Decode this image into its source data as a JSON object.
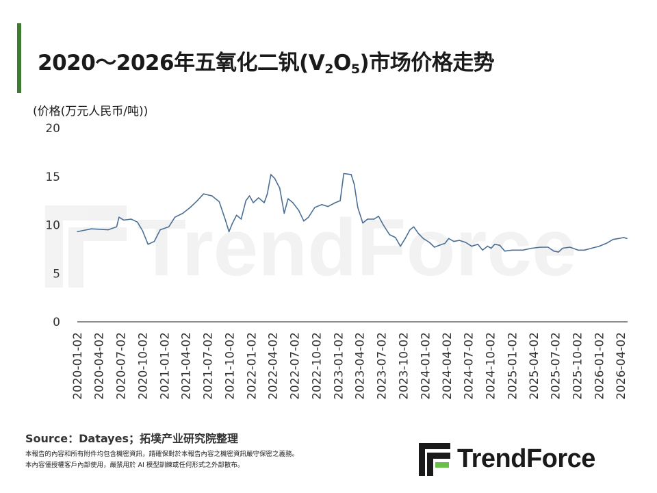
{
  "header": {
    "title_prefix": "2020～2026年五氧化二钒(V",
    "title_sub1": "2",
    "title_mid": "O",
    "title_sub2": "5",
    "title_suffix": ")市场价格走势"
  },
  "chart_data": {
    "type": "line",
    "ylabel": "(价格(万元人民币/吨))",
    "ylim": [
      0,
      20
    ],
    "y_ticks": [
      "0",
      "5",
      "10",
      "15",
      "20"
    ],
    "x_range": [
      "2020-01-02",
      "2026-05-01"
    ],
    "x_ticks": [
      "2020-01-02",
      "2020-04-02",
      "2020-07-02",
      "2020-10-02",
      "2021-01-02",
      "2021-04-02",
      "2021-07-02",
      "2021-10-02",
      "2022-01-02",
      "2022-04-02",
      "2022-07-02",
      "2022-10-02",
      "2023-01-02",
      "2023-04-02",
      "2023-07-02",
      "2023-10-02",
      "2024-01-02",
      "2024-04-02",
      "2024-07-02",
      "2024-10-02",
      "2025-01-02",
      "2025-04-02",
      "2025-07-02",
      "2025-10-02",
      "2026-01-02",
      "2026-04-02"
    ],
    "line_color": "#4a6f96",
    "grid": false,
    "series": [
      {
        "name": "",
        "points": [
          [
            "2020-01-02",
            9.3
          ],
          [
            "2020-03-01",
            9.6
          ],
          [
            "2020-05-10",
            9.5
          ],
          [
            "2020-06-15",
            9.8
          ],
          [
            "2020-06-25",
            10.8
          ],
          [
            "2020-07-15",
            10.5
          ],
          [
            "2020-08-15",
            10.6
          ],
          [
            "2020-09-10",
            10.3
          ],
          [
            "2020-10-02",
            9.4
          ],
          [
            "2020-10-25",
            8.0
          ],
          [
            "2020-11-20",
            8.3
          ],
          [
            "2020-12-15",
            9.5
          ],
          [
            "2021-01-20",
            9.8
          ],
          [
            "2021-02-15",
            10.8
          ],
          [
            "2021-03-20",
            11.2
          ],
          [
            "2021-04-20",
            11.8
          ],
          [
            "2021-05-20",
            12.5
          ],
          [
            "2021-06-15",
            13.2
          ],
          [
            "2021-07-20",
            13.0
          ],
          [
            "2021-08-20",
            12.4
          ],
          [
            "2021-09-15",
            10.5
          ],
          [
            "2021-09-30",
            9.3
          ],
          [
            "2021-10-15",
            10.2
          ],
          [
            "2021-11-01",
            11.0
          ],
          [
            "2021-11-20",
            10.6
          ],
          [
            "2021-12-10",
            12.5
          ],
          [
            "2021-12-25",
            13.0
          ],
          [
            "2022-01-10",
            12.3
          ],
          [
            "2022-02-01",
            12.8
          ],
          [
            "2022-02-25",
            12.3
          ],
          [
            "2022-03-10",
            13.2
          ],
          [
            "2022-03-25",
            15.2
          ],
          [
            "2022-04-10",
            14.8
          ],
          [
            "2022-05-01",
            13.8
          ],
          [
            "2022-05-20",
            11.2
          ],
          [
            "2022-06-05",
            12.7
          ],
          [
            "2022-06-25",
            12.3
          ],
          [
            "2022-07-20",
            11.5
          ],
          [
            "2022-08-10",
            10.4
          ],
          [
            "2022-08-30",
            10.8
          ],
          [
            "2022-09-25",
            11.8
          ],
          [
            "2022-10-25",
            12.1
          ],
          [
            "2022-11-20",
            11.9
          ],
          [
            "2022-12-20",
            12.3
          ],
          [
            "2023-01-10",
            12.5
          ],
          [
            "2023-01-25",
            15.3
          ],
          [
            "2023-02-25",
            15.2
          ],
          [
            "2023-03-10",
            14.2
          ],
          [
            "2023-03-25",
            11.8
          ],
          [
            "2023-04-15",
            10.2
          ],
          [
            "2023-05-05",
            10.6
          ],
          [
            "2023-06-01",
            10.6
          ],
          [
            "2023-06-20",
            10.9
          ],
          [
            "2023-07-10",
            10.0
          ],
          [
            "2023-08-05",
            9.0
          ],
          [
            "2023-08-30",
            8.7
          ],
          [
            "2023-09-20",
            7.8
          ],
          [
            "2023-10-10",
            8.6
          ],
          [
            "2023-10-30",
            9.5
          ],
          [
            "2023-11-15",
            9.8
          ],
          [
            "2023-12-05",
            9.1
          ],
          [
            "2023-12-25",
            8.6
          ],
          [
            "2024-01-20",
            8.2
          ],
          [
            "2024-02-10",
            7.7
          ],
          [
            "2024-03-01",
            7.9
          ],
          [
            "2024-03-25",
            8.1
          ],
          [
            "2024-04-10",
            8.6
          ],
          [
            "2024-05-01",
            8.3
          ],
          [
            "2024-05-25",
            8.4
          ],
          [
            "2024-06-20",
            8.2
          ],
          [
            "2024-07-15",
            7.8
          ],
          [
            "2024-08-10",
            8.0
          ],
          [
            "2024-08-30",
            7.4
          ],
          [
            "2024-09-20",
            7.8
          ],
          [
            "2024-10-05",
            7.6
          ],
          [
            "2024-10-20",
            8.0
          ],
          [
            "2024-11-10",
            7.9
          ],
          [
            "2024-12-01",
            7.3
          ],
          [
            "2025-01-02",
            7.4
          ],
          [
            "2025-02-15",
            7.4
          ],
          [
            "2025-03-25",
            7.6
          ],
          [
            "2025-05-01",
            7.7
          ],
          [
            "2025-06-01",
            7.7
          ],
          [
            "2025-06-25",
            7.3
          ],
          [
            "2025-07-15",
            7.2
          ],
          [
            "2025-08-01",
            7.6
          ],
          [
            "2025-09-01",
            7.7
          ],
          [
            "2025-10-05",
            7.4
          ],
          [
            "2025-11-01",
            7.4
          ],
          [
            "2025-12-01",
            7.6
          ],
          [
            "2026-01-02",
            7.8
          ],
          [
            "2026-02-01",
            8.1
          ],
          [
            "2026-03-01",
            8.5
          ],
          [
            "2026-03-25",
            8.6
          ],
          [
            "2026-04-15",
            8.7
          ],
          [
            "2026-04-28",
            8.6
          ]
        ]
      }
    ]
  },
  "footer": {
    "source": "Source：Datayes；拓墣产业研究院整理",
    "disclaimer_line1": "本報告的內容和所有附件均包含機密資訊，請確保對於本報告內容之機密資訊嚴守保密之義務。",
    "disclaimer_line2": "本內容僅授權客戶內部使用，嚴禁用於 AI 模型訓練或任何形式之外部散布。",
    "logo_text": "TrendForce",
    "watermark_text": "TrendForce",
    "brand_green": "#3d7a32"
  }
}
